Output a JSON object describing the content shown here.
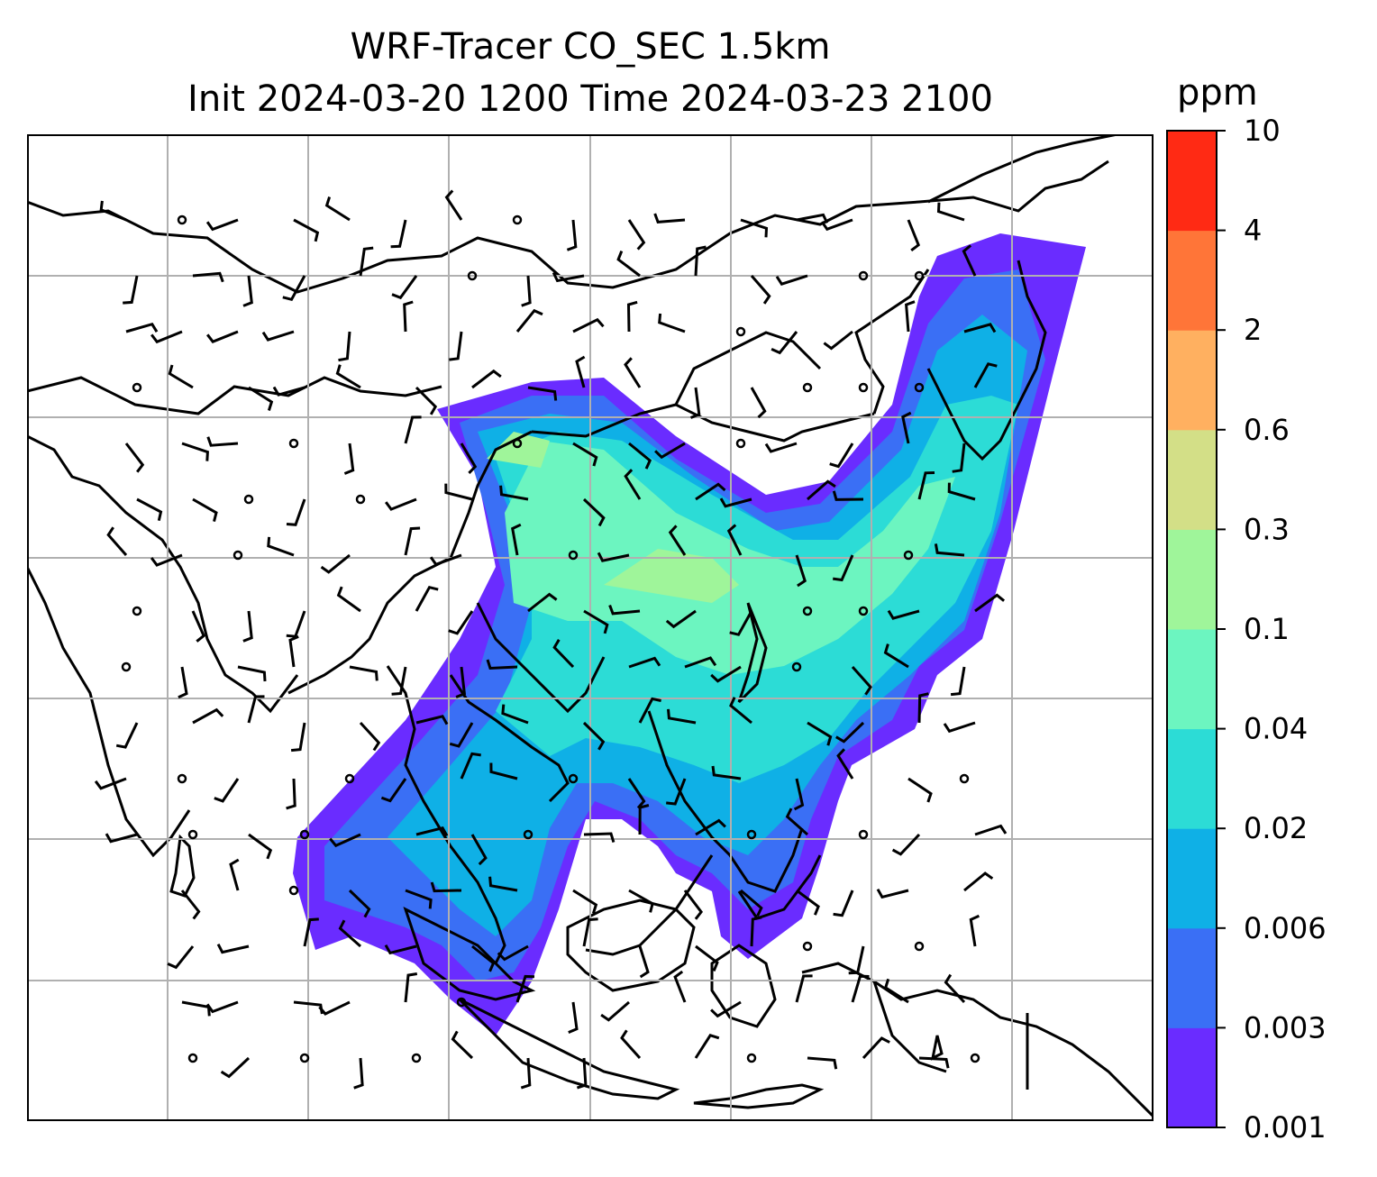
{
  "title": {
    "line1": "WRF-Tracer CO_SEC 1.5km",
    "line2": "Init 2024-03-20 1200 Time 2024-03-23 2100"
  },
  "colorbar": {
    "unit": "ppm",
    "levels": [
      "0.001",
      "0.003",
      "0.006",
      "0.02",
      "0.04",
      "0.1",
      "0.3",
      "0.6",
      "2",
      "4",
      "10"
    ],
    "colors": [
      "#6a2cff",
      "#3a6ff5",
      "#0fb0e6",
      "#2cdcd6",
      "#6cf5c0",
      "#9ff59a",
      "#d3df87",
      "#ffb060",
      "#ff7538",
      "#ff2a14"
    ]
  },
  "map": {
    "gridlines": true,
    "features": [
      "coastlines",
      "country-borders",
      "wind-barbs",
      "tracer-concentration-shading"
    ]
  }
}
